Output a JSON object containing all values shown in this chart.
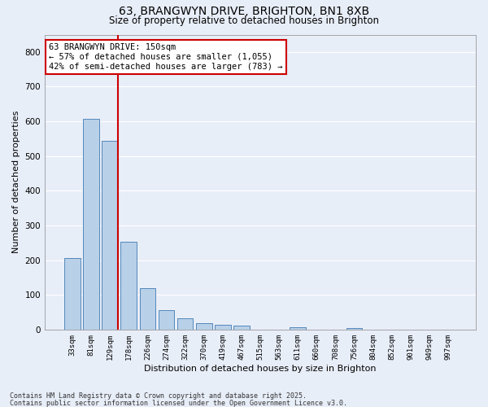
{
  "title_line1": "63, BRANGWYN DRIVE, BRIGHTON, BN1 8XB",
  "title_line2": "Size of property relative to detached houses in Brighton",
  "xlabel": "Distribution of detached houses by size in Brighton",
  "ylabel": "Number of detached properties",
  "categories": [
    "33sqm",
    "81sqm",
    "129sqm",
    "178sqm",
    "226sqm",
    "274sqm",
    "322sqm",
    "370sqm",
    "419sqm",
    "467sqm",
    "515sqm",
    "563sqm",
    "611sqm",
    "660sqm",
    "708sqm",
    "756sqm",
    "804sqm",
    "852sqm",
    "901sqm",
    "949sqm",
    "997sqm"
  ],
  "values": [
    205,
    607,
    543,
    252,
    120,
    57,
    33,
    18,
    14,
    11,
    0,
    0,
    7,
    0,
    0,
    5,
    0,
    0,
    0,
    0,
    0
  ],
  "bar_color": "#b8d0e8",
  "bar_edge_color": "#5588bb",
  "property_line_color": "#cc0000",
  "annotation_text": "63 BRANGWYN DRIVE: 150sqm\n← 57% of detached houses are smaller (1,055)\n42% of semi-detached houses are larger (783) →",
  "annotation_box_color": "#ffffff",
  "annotation_box_edge": "#cc0000",
  "ylim": [
    0,
    850
  ],
  "yticks": [
    0,
    100,
    200,
    300,
    400,
    500,
    600,
    700,
    800
  ],
  "background_color": "#e8eef8",
  "grid_color": "#ffffff",
  "footer_line1": "Contains HM Land Registry data © Crown copyright and database right 2025.",
  "footer_line2": "Contains public sector information licensed under the Open Government Licence v3.0."
}
